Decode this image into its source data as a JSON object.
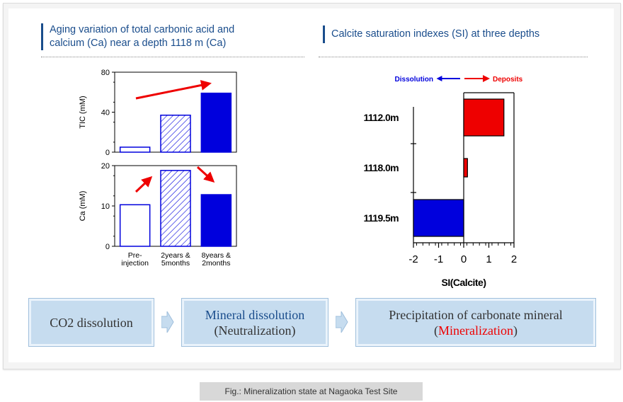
{
  "left_heading": {
    "line1": "Aging variation of total carbonic acid and",
    "line2": "calcium (Ca) near a depth 1118 m (Ca)"
  },
  "right_heading": "Calcite saturation indexes (SI) at three depths",
  "colors": {
    "blue": "#0000dd",
    "red": "#ee0000",
    "heading": "#1a4d8c"
  },
  "chart_data": [
    {
      "type": "bar",
      "categories": [
        "Pre-injection",
        "2years & 5months",
        "8years & 2months"
      ],
      "category_lines": [
        [
          "Pre-",
          "injection"
        ],
        [
          "2years &",
          "5months"
        ],
        [
          "8years &",
          "2months"
        ]
      ],
      "values": [
        5,
        37,
        59
      ],
      "ylabel": "TIC (mM)",
      "ylim": [
        0,
        80
      ],
      "yticks": [
        "0",
        "40",
        "80"
      ],
      "bar_styles": [
        "outline",
        "hatched",
        "solid"
      ]
    },
    {
      "type": "bar",
      "categories": [
        "Pre-injection",
        "2years & 5months",
        "8years & 2months"
      ],
      "values": [
        10.3,
        18.8,
        12.8
      ],
      "ylabel": "Ca (mM)",
      "ylim": [
        0,
        20
      ],
      "yticks": [
        "0",
        "10",
        "20"
      ],
      "bar_styles": [
        "outline",
        "hatched",
        "solid"
      ]
    },
    {
      "type": "bar",
      "orientation": "horizontal",
      "categories": [
        "1112.0m",
        "1118.0m",
        "1119.5m"
      ],
      "values": [
        1.6,
        0.15,
        -2.0
      ],
      "xlabel": "SI(Calcite)",
      "xlim": [
        -2,
        2
      ],
      "xticks": [
        "-2",
        "-1",
        "0",
        "1",
        "2"
      ],
      "annotation_left": "Dissolution",
      "annotation_right": "Deposits"
    }
  ],
  "flow": {
    "box1": "CO2 dissolution",
    "box2_line1": "Mineral dissolution",
    "box2_line2": "(Neutralization)",
    "box3_line1": "Precipitation of carbonate mineral",
    "box3_open": "(",
    "box3_highlight": "Mineralization",
    "box3_close": ")"
  },
  "caption": "Fig.: Mineralization state at Nagaoka Test Site"
}
